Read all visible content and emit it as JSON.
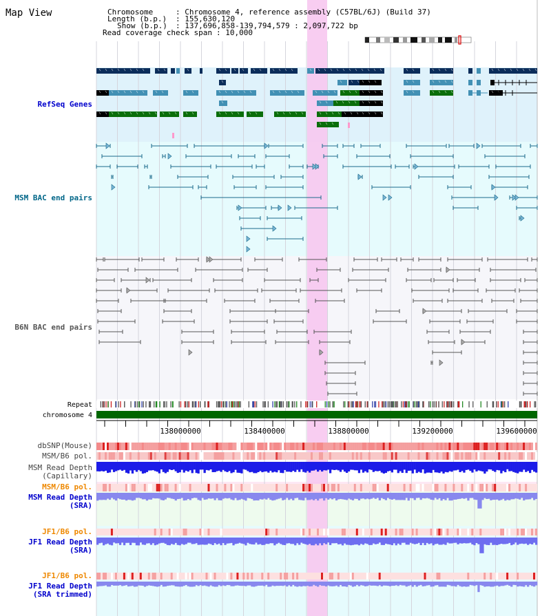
{
  "view_title": "Map View",
  "info": {
    "chromosome_key": "Chromosome",
    "chromosome_value": ": Chromosome 4, reference assembly (C57BL/6J) (Build 37)",
    "length_key": "Length (b.p.)",
    "length_value": ": 155,630,120",
    "show_key": "Show (b.p.)",
    "show_value": ": 137,696,858-139,794,579 : 2,097,722 bp",
    "coverage_key": "Read coverage check span",
    "coverage_value": ": 10,000"
  },
  "tracks": {
    "refseq": "RefSeq Genes",
    "msm_bac": "MSM BAC end pairs",
    "b6n_bac": "B6N BAC end pairs",
    "repeat": "Repeat",
    "chromosome": "chromosome 4",
    "dbsnp": "dbSNP(Mouse)",
    "msm_b6_pol_1": "MSM/B6 pol.",
    "msm_depth_cap_1": "MSM Read Depth",
    "msm_depth_cap_2": "(Capillary)",
    "msm_b6_pol_2": "MSM/B6 pol.",
    "msm_depth_sra_1": "MSM Read Depth",
    "msm_depth_sra_2": "(SRA)",
    "jf1_pol_1": "JF1/B6 pol.",
    "jf1_depth_sra_1": "JF1 Read Depth",
    "jf1_depth_sra_2": "(SRA)",
    "jf1_pol_2": "JF1/B6 pol.",
    "jf1_depth_trim_1": "JF1 Read Depth",
    "jf1_depth_trim_2": "(SRA trimmed)"
  },
  "axis_ticks": [
    "138000000",
    "138400000",
    "138800000",
    "139200000",
    "139600000"
  ],
  "colors": {
    "refseq_label": "#0000cc",
    "msm_label": "#006688",
    "b6n_label": "#555555",
    "orange_label": "#ee8800",
    "blue_label": "#0000cc",
    "highlight": "#f7c8f0",
    "chromosome_bar": "#006600"
  }
}
